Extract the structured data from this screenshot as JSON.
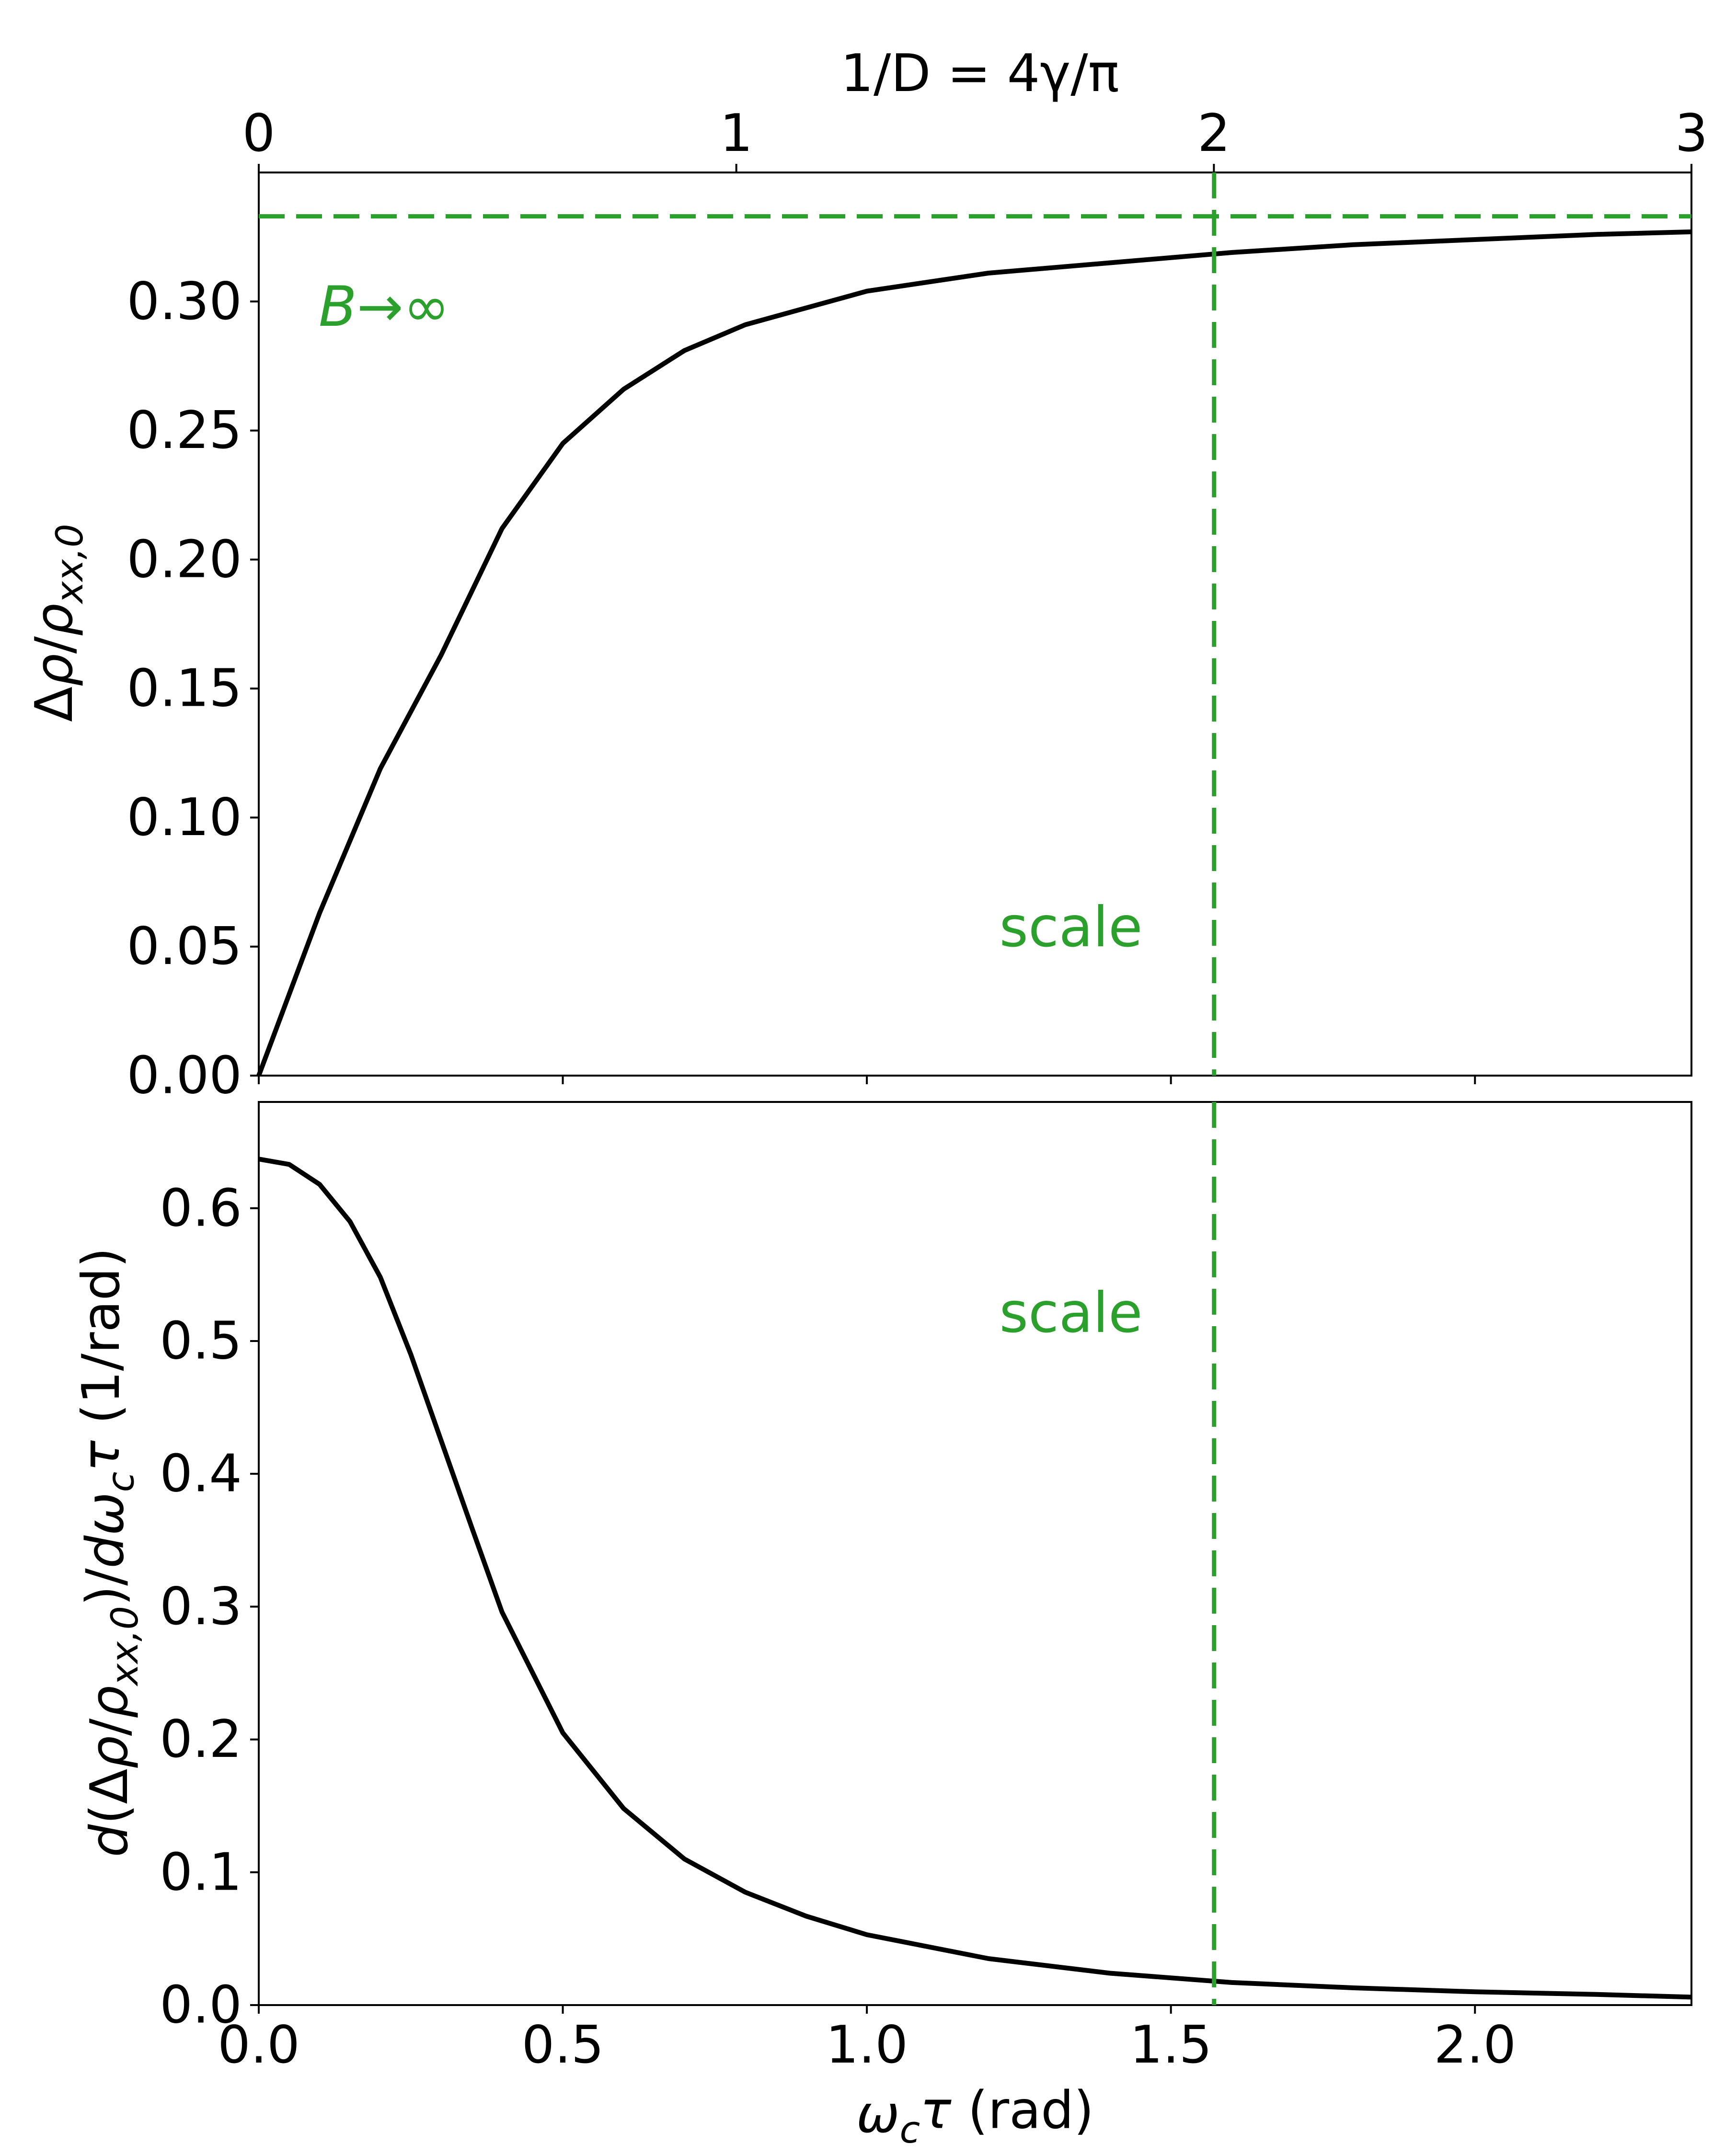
{
  "chart_data": [
    {
      "id": "top",
      "type": "line",
      "xlabel_top": "1/D = 4γ/π",
      "top_ticks": [
        "0",
        "1",
        "2",
        "3"
      ],
      "top_tick_values": [
        0,
        1,
        2,
        3
      ],
      "ylabel": "Δρ/ρ_{xx,0}",
      "ylabel_parts": [
        {
          "t": "Δ",
          "i": false
        },
        {
          "t": "ρ",
          "i": true
        },
        {
          "t": "/",
          "i": false
        },
        {
          "t": "ρ",
          "i": true
        },
        {
          "t": "xx,0",
          "i": true,
          "sub": true
        }
      ],
      "xlim": [
        0,
        2.356
      ],
      "ylim": [
        0,
        0.35
      ],
      "yticks": [
        "0.00",
        "0.05",
        "0.10",
        "0.15",
        "0.20",
        "0.25",
        "0.30"
      ],
      "ytick_values": [
        0,
        0.05,
        0.1,
        0.15,
        0.2,
        0.25,
        0.3
      ],
      "series": [
        {
          "x": [
            0,
            0.1,
            0.2,
            0.3,
            0.4,
            0.5,
            0.6,
            0.7,
            0.8,
            1.0,
            1.2,
            1.4,
            1.6,
            1.8,
            2.0,
            2.2,
            2.356
          ],
          "y": [
            0,
            0.063,
            0.119,
            0.163,
            0.212,
            0.245,
            0.266,
            0.281,
            0.291,
            0.304,
            0.311,
            0.315,
            0.319,
            0.322,
            0.324,
            0.326,
            0.327
          ]
        }
      ],
      "hline": {
        "y": 0.333,
        "label": "B→∞"
      },
      "vline": {
        "x": 1.571,
        "label": "scale"
      }
    },
    {
      "id": "bottom",
      "type": "line",
      "xlabel": "ω_c τ (rad)",
      "xlabel_parts": [
        {
          "t": "ω",
          "i": true
        },
        {
          "t": "c",
          "i": true,
          "sub": true
        },
        {
          "t": "τ",
          "i": true
        },
        {
          "t": " (rad)",
          "i": false
        }
      ],
      "ylabel": "d(Δρ/ρ_{xx,0})/dω_c τ (1/rad)",
      "ylabel_parts": [
        {
          "t": "d",
          "i": true
        },
        {
          "t": "(Δ",
          "i": false
        },
        {
          "t": "ρ",
          "i": true
        },
        {
          "t": "/",
          "i": false
        },
        {
          "t": "ρ",
          "i": true
        },
        {
          "t": "xx,0",
          "i": true,
          "sub": true
        },
        {
          "t": ")/",
          "i": false
        },
        {
          "t": "dω",
          "i": true
        },
        {
          "t": "c",
          "i": true,
          "sub": true
        },
        {
          "t": "τ",
          "i": true
        },
        {
          "t": " (1/rad)",
          "i": false
        }
      ],
      "xlim": [
        0,
        2.356
      ],
      "ylim": [
        0,
        0.68
      ],
      "xticks": [
        "0.0",
        "0.5",
        "1.0",
        "1.5",
        "2.0"
      ],
      "xtick_values": [
        0,
        0.5,
        1.0,
        1.5,
        2.0
      ],
      "yticks": [
        "0.0",
        "0.1",
        "0.2",
        "0.3",
        "0.4",
        "0.5",
        "0.6"
      ],
      "ytick_values": [
        0,
        0.1,
        0.2,
        0.3,
        0.4,
        0.5,
        0.6
      ],
      "series": [
        {
          "x": [
            0,
            0.05,
            0.1,
            0.15,
            0.2,
            0.25,
            0.3,
            0.35,
            0.4,
            0.5,
            0.6,
            0.7,
            0.8,
            0.9,
            1.0,
            1.2,
            1.4,
            1.6,
            1.8,
            2.0,
            2.2,
            2.356
          ],
          "y": [
            0.637,
            0.633,
            0.618,
            0.59,
            0.548,
            0.49,
            0.425,
            0.36,
            0.296,
            0.205,
            0.148,
            0.11,
            0.085,
            0.067,
            0.053,
            0.035,
            0.024,
            0.017,
            0.013,
            0.01,
            0.008,
            0.006
          ]
        }
      ],
      "vline": {
        "x": 1.571,
        "label": "scale"
      }
    }
  ],
  "colors": {
    "curve": "#000000",
    "guide": "#2ca02c"
  }
}
